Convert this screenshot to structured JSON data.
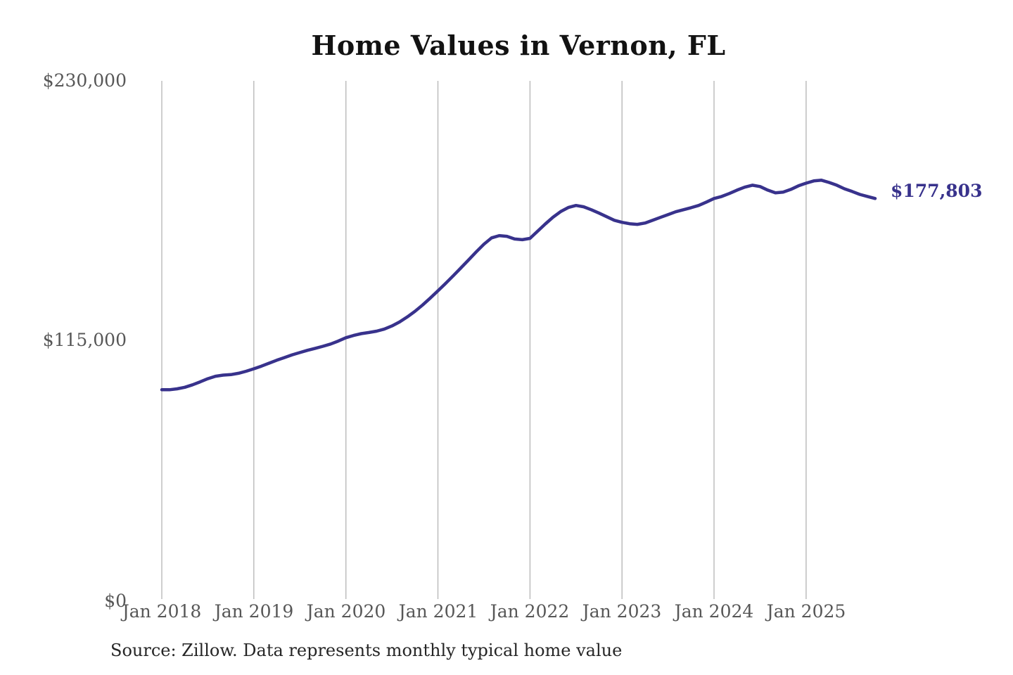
{
  "page": {
    "background_color": "#ffffff"
  },
  "chart_data": {
    "type": "line",
    "title": "Home Values in Vernon, FL",
    "source_note": "Source: Zillow. Data represents monthly typical home value",
    "series_name": "Monthly typical home value",
    "unit": "USD",
    "end_label": "$177,803",
    "end_value": 177803,
    "line_color": "#38328c",
    "grid_color": "#bdbdbd",
    "tick_label_color": "#575757",
    "ylim": [
      0,
      230000
    ],
    "y_tick_labels": [
      "$230,000",
      "$115,000",
      "$0"
    ],
    "y_tick_values": [
      230000,
      115000,
      0
    ],
    "x_tick_labels": [
      "Jan 2018",
      "Jan 2019",
      "Jan 2020",
      "Jan 2021",
      "Jan 2022",
      "Jan 2023",
      "Jan 2024",
      "Jan 2025"
    ],
    "grid": "vertical-only",
    "legend": "none",
    "x_months": [
      "2018-01",
      "2018-02",
      "2018-03",
      "2018-04",
      "2018-05",
      "2018-06",
      "2018-07",
      "2018-08",
      "2018-09",
      "2018-10",
      "2018-11",
      "2018-12",
      "2019-01",
      "2019-02",
      "2019-03",
      "2019-04",
      "2019-05",
      "2019-06",
      "2019-07",
      "2019-08",
      "2019-09",
      "2019-10",
      "2019-11",
      "2019-12",
      "2020-01",
      "2020-02",
      "2020-03",
      "2020-04",
      "2020-05",
      "2020-06",
      "2020-07",
      "2020-08",
      "2020-09",
      "2020-10",
      "2020-11",
      "2020-12",
      "2021-01",
      "2021-02",
      "2021-03",
      "2021-04",
      "2021-05",
      "2021-06",
      "2021-07",
      "2021-08",
      "2021-09",
      "2021-10",
      "2021-11",
      "2021-12",
      "2022-01",
      "2022-02",
      "2022-03",
      "2022-04",
      "2022-05",
      "2022-06",
      "2022-07",
      "2022-08",
      "2022-09",
      "2022-10",
      "2022-11",
      "2022-12",
      "2023-01",
      "2023-02",
      "2023-03",
      "2023-04",
      "2023-05",
      "2023-06",
      "2023-07",
      "2023-08",
      "2023-09",
      "2023-10",
      "2023-11",
      "2023-12",
      "2024-01",
      "2024-02",
      "2024-03",
      "2024-04",
      "2024-05",
      "2024-06",
      "2024-07",
      "2024-08",
      "2024-09",
      "2024-10",
      "2024-11",
      "2024-12",
      "2025-01",
      "2025-02",
      "2025-03",
      "2025-04",
      "2025-05",
      "2025-06",
      "2025-07",
      "2025-08",
      "2025-09",
      "2025-10"
    ],
    "values": [
      92900,
      92900,
      93300,
      94000,
      95100,
      96400,
      97800,
      98900,
      99400,
      99600,
      100200,
      101100,
      102200,
      103400,
      104700,
      106000,
      107200,
      108400,
      109400,
      110400,
      111300,
      112200,
      113200,
      114500,
      116000,
      117000,
      117800,
      118300,
      118900,
      119800,
      121200,
      123000,
      125200,
      127700,
      130500,
      133600,
      136800,
      140100,
      143500,
      147000,
      150500,
      154100,
      157500,
      160300,
      161300,
      161000,
      159800,
      159500,
      160100,
      163300,
      166500,
      169500,
      172000,
      173800,
      174700,
      174100,
      172800,
      171300,
      169700,
      168100,
      167200,
      166600,
      166300,
      166900,
      168100,
      169400,
      170600,
      171900,
      172800,
      173700,
      174700,
      176200,
      177800,
      178700,
      180000,
      181500,
      182800,
      183700,
      183100,
      181500,
      180300,
      180600,
      181800,
      183400,
      184600,
      185600,
      185900,
      184900,
      183700,
      182100,
      180900,
      179600,
      178700,
      177803
    ]
  }
}
